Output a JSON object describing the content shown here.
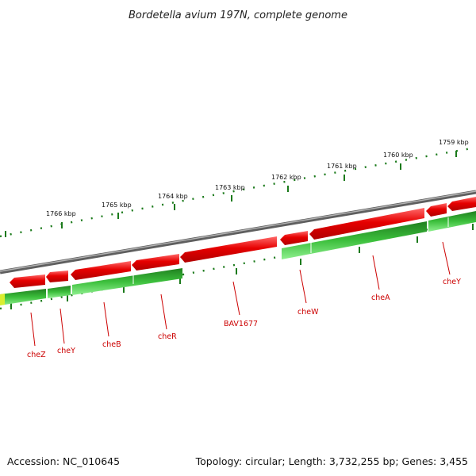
{
  "title": "Bordetella avium 197N, complete genome",
  "footer": {
    "accession": "Accession: NC_010645",
    "summary": "Topology: circular; Length: 3,732,255 bp; Genes: 3,455"
  },
  "colors": {
    "forward_strand": "#e60000",
    "reverse_strand": "#2fa52f",
    "backbone": "#808080",
    "tick": "#1b7a1b",
    "label": "#cc0000"
  },
  "ruler": {
    "outer_labels": [
      "1766 kbp",
      "1765 kbp",
      "1764 kbp",
      "1763 kbp",
      "1762 kbp",
      "1761 kbp",
      "1760 kbp",
      "1759 kbp"
    ]
  },
  "genes": [
    {
      "label": "cheZ"
    },
    {
      "label": "cheY"
    },
    {
      "label": "cheB"
    },
    {
      "label": "cheR"
    },
    {
      "label": "BAV1677"
    },
    {
      "label": "cheW"
    },
    {
      "label": "cheA"
    },
    {
      "label": "cheY"
    }
  ]
}
